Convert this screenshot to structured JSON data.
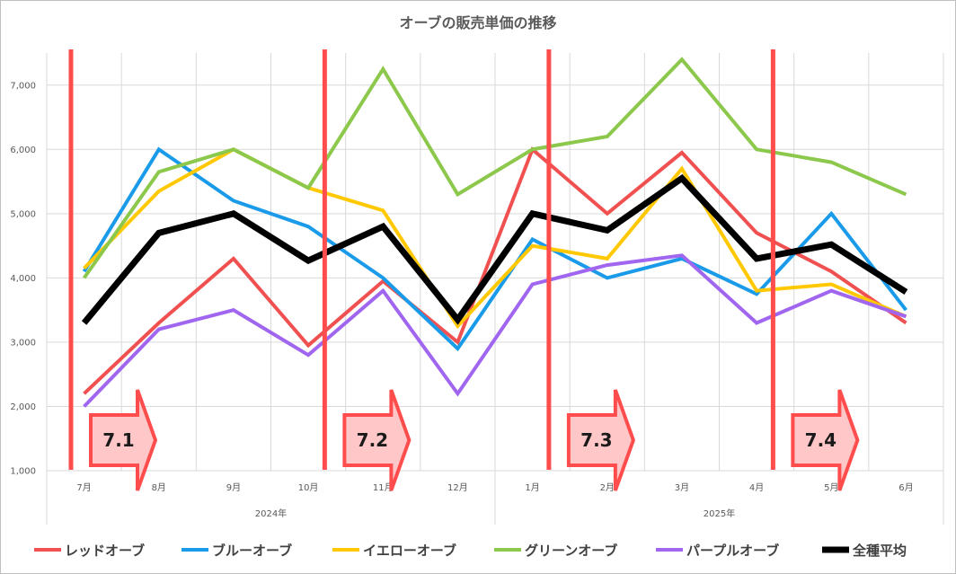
{
  "chart_data": {
    "type": "line",
    "title": "オーブの販売単価の推移",
    "categories": [
      "7月",
      "8月",
      "9月",
      "10月",
      "11月",
      "12月",
      "1月",
      "2月",
      "3月",
      "4月",
      "5月",
      "6月"
    ],
    "year_groups": [
      {
        "label": "2024年",
        "from": 0,
        "to": 5
      },
      {
        "label": "2025年",
        "from": 6,
        "to": 11
      }
    ],
    "ylim": [
      1000,
      7500
    ],
    "yticks": [
      1000,
      2000,
      3000,
      4000,
      5000,
      6000,
      7000
    ],
    "ytick_labels": [
      "1,000",
      "2,000",
      "3,000",
      "4,000",
      "5,000",
      "6,000",
      "7,000"
    ],
    "grid": true,
    "legend_position": "bottom",
    "series": [
      {
        "name": "レッドオーブ",
        "color": "#f05050",
        "width": 4,
        "values": [
          2200,
          3300,
          4300,
          2950,
          3950,
          3000,
          6000,
          5000,
          5950,
          4700,
          4100,
          3300
        ]
      },
      {
        "name": "ブルーオーブ",
        "color": "#1a9bea",
        "width": 4,
        "values": [
          4100,
          6000,
          5200,
          4800,
          4000,
          2900,
          4600,
          4000,
          4300,
          3750,
          5000,
          3500
        ]
      },
      {
        "name": "イエローオーブ",
        "color": "#ffc800",
        "width": 4,
        "values": [
          4150,
          5350,
          6000,
          5400,
          5050,
          3250,
          4500,
          4300,
          5700,
          3800,
          3900,
          3400
        ]
      },
      {
        "name": "グリーンオーブ",
        "color": "#8cc84b",
        "width": 4,
        "values": [
          4000,
          5650,
          6000,
          5400,
          7250,
          5300,
          6000,
          6200,
          7400,
          6000,
          5800,
          5300
        ]
      },
      {
        "name": "パープルオーブ",
        "color": "#a066f0",
        "width": 4,
        "values": [
          2000,
          3200,
          3500,
          2800,
          3800,
          2200,
          3900,
          4200,
          4350,
          3300,
          3800,
          3400
        ]
      },
      {
        "name": "全種平均",
        "color": "#000000",
        "width": 7,
        "values": [
          3300,
          4700,
          5000,
          4270,
          4800,
          3350,
          5000,
          4740,
          5550,
          4300,
          4520,
          3780
        ]
      }
    ],
    "version_markers": [
      {
        "label": "7.1",
        "between": [
          -0.15,
          0
        ]
      },
      {
        "label": "7.2",
        "between": [
          3,
          4
        ]
      },
      {
        "label": "7.3",
        "between": [
          6,
          7
        ]
      },
      {
        "label": "7.4",
        "between": [
          9,
          10
        ]
      }
    ],
    "marker_line_color": "#ff4d4d",
    "marker_arrow_fill": "#ffc7c7"
  }
}
